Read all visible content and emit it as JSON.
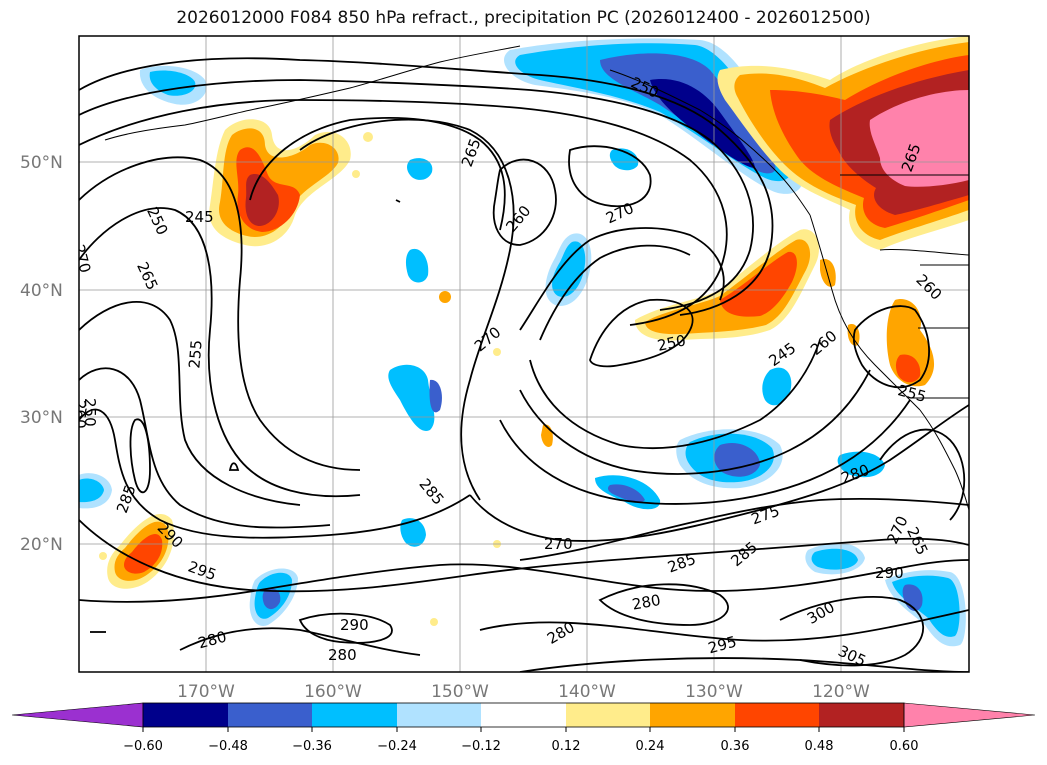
{
  "title": "2026012000 F084 850 hPa refract., precipitation PC (2026012400 - 2026012500)",
  "lat_labels": [
    "50°N",
    "40°N",
    "30°N",
    "20°N"
  ],
  "lon_labels": [
    "170°W",
    "160°W",
    "150°W",
    "140°W",
    "130°W",
    "120°W"
  ],
  "colorbar": {
    "ticks": [
      "−0.60",
      "−0.48",
      "−0.36",
      "−0.24",
      "−0.12",
      "0.12",
      "0.24",
      "0.36",
      "0.48",
      "0.60"
    ],
    "colors": [
      "#9b30d0",
      "#00008b",
      "#3a5fcd",
      "#00bfff",
      "#b0e2ff",
      "#ffffff",
      "#ffec8b",
      "#ffa500",
      "#ff4500",
      "#b22222",
      "#ff82ab"
    ]
  },
  "contour_labels": [
    "245",
    "250",
    "250",
    "250",
    "255",
    "260",
    "265",
    "265",
    "270",
    "270",
    "270",
    "270",
    "285",
    "285",
    "285",
    "280",
    "280",
    "280",
    "290",
    "290",
    "295",
    "295",
    "300",
    "305",
    "280",
    "275",
    "270",
    "265",
    "260",
    "245",
    "265",
    "260",
    "260",
    "250",
    "255",
    "285",
    "290",
    "280"
  ]
}
